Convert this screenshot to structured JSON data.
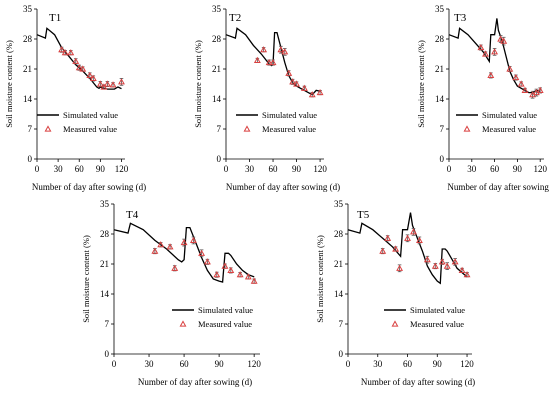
{
  "shared": {
    "ylabel": "Soil moisture content (%)",
    "xlabel": "Number of day after sowing (d)",
    "legend_simulated": "Simulated value",
    "legend_measured": "Measured value",
    "colors": {
      "line": "#000000",
      "marker": "#d94040",
      "errorbar": "#555555"
    }
  },
  "chart_data": [
    {
      "type": "line",
      "title": "T1",
      "xlabel": "Number of day after sowing (d)",
      "ylabel": "Soil moisture content (%)",
      "xlim": [
        0,
        125
      ],
      "ylim": [
        0,
        35
      ],
      "xticks": [
        0,
        30,
        60,
        90,
        120
      ],
      "yticks": [
        0,
        7,
        14,
        21,
        28,
        35
      ],
      "legend": "bottom-right",
      "series": [
        {
          "name": "Simulated value",
          "kind": "line",
          "x": [
            0,
            12,
            14,
            25,
            35,
            45,
            55,
            65,
            75,
            85,
            88,
            90,
            95,
            100,
            105,
            110,
            115,
            120
          ],
          "y": [
            29.0,
            28.2,
            30.5,
            29.0,
            26.0,
            24.0,
            22.0,
            20.5,
            18.8,
            16.8,
            16.5,
            16.8,
            16.5,
            16.3,
            16.3,
            16.3,
            16.8,
            16.4
          ]
        },
        {
          "name": "Measured value",
          "kind": "scatter",
          "x": [
            35,
            40,
            48,
            55,
            60,
            65,
            75,
            80,
            90,
            95,
            100,
            108,
            120
          ],
          "y": [
            25.5,
            24.8,
            24.8,
            22.8,
            21.3,
            21.0,
            19.5,
            18.8,
            17.5,
            16.8,
            17.5,
            17.3,
            18.0
          ],
          "err": [
            0.6,
            0.5,
            0.5,
            0.6,
            0.6,
            0.5,
            0.6,
            0.6,
            0.6,
            0.5,
            0.6,
            0.5,
            0.8
          ]
        }
      ]
    },
    {
      "type": "line",
      "title": "T2",
      "xlabel": "Number of day after sowing (d)",
      "ylabel": "Soil moisture content (%)",
      "xlim": [
        0,
        125
      ],
      "ylim": [
        0,
        35
      ],
      "xticks": [
        0,
        30,
        60,
        90,
        120
      ],
      "yticks": [
        0,
        7,
        14,
        21,
        28,
        35
      ],
      "legend": "bottom-right",
      "series": [
        {
          "name": "Simulated value",
          "kind": "line",
          "x": [
            0,
            12,
            14,
            25,
            35,
            45,
            55,
            58,
            60,
            62,
            65,
            70,
            75,
            80,
            85,
            90,
            95,
            100,
            105,
            110,
            115,
            120
          ],
          "y": [
            29.0,
            28.2,
            30.5,
            29.0,
            26.5,
            24.5,
            22.2,
            21.8,
            22.0,
            29.5,
            29.5,
            26.0,
            22.5,
            19.5,
            17.8,
            17.0,
            16.5,
            16.0,
            15.5,
            15.0,
            16.0,
            15.8
          ]
        },
        {
          "name": "Measured value",
          "kind": "scatter",
          "x": [
            40,
            48,
            55,
            60,
            70,
            75,
            80,
            85,
            90,
            100,
            110,
            120
          ],
          "y": [
            23.0,
            25.5,
            22.5,
            22.5,
            25.5,
            25.0,
            20.0,
            18.0,
            17.5,
            16.5,
            15.0,
            15.5
          ],
          "err": [
            0.5,
            0.5,
            0.6,
            0.6,
            0.8,
            0.8,
            0.6,
            0.6,
            0.5,
            0.5,
            0.5,
            0.5
          ]
        }
      ]
    },
    {
      "type": "line",
      "title": "T3",
      "xlabel": "Number of day after sowing (d)",
      "ylabel": "Soil moisture content (%)",
      "xlim": [
        0,
        125
      ],
      "ylim": [
        0,
        35
      ],
      "xticks": [
        0,
        30,
        60,
        90,
        120
      ],
      "yticks": [
        0,
        7,
        14,
        21,
        28,
        35
      ],
      "legend": "bottom-right",
      "series": [
        {
          "name": "Simulated value",
          "kind": "line",
          "x": [
            0,
            12,
            14,
            25,
            35,
            45,
            53,
            55,
            58,
            60,
            63,
            65,
            70,
            75,
            80,
            85,
            90,
            95,
            100,
            105,
            110,
            115,
            120
          ],
          "y": [
            29.0,
            28.2,
            30.5,
            29.0,
            27.0,
            25.0,
            22.8,
            29.0,
            29.0,
            29.0,
            32.8,
            30.0,
            27.5,
            24.0,
            20.5,
            18.5,
            17.0,
            16.5,
            16.0,
            15.5,
            15.5,
            16.0,
            15.8
          ]
        },
        {
          "name": "Measured value",
          "kind": "scatter",
          "x": [
            42,
            48,
            55,
            60,
            68,
            72,
            80,
            88,
            95,
            100,
            110,
            115,
            120
          ],
          "y": [
            26.0,
            24.5,
            19.5,
            25.0,
            28.0,
            27.5,
            21.0,
            19.0,
            17.5,
            16.0,
            15.0,
            15.5,
            16.0
          ],
          "err": [
            0.6,
            0.5,
            0.6,
            0.8,
            0.8,
            0.9,
            0.6,
            0.6,
            0.5,
            0.5,
            0.8,
            0.8,
            0.6
          ]
        }
      ]
    },
    {
      "type": "line",
      "title": "T4",
      "xlabel": "Number of day after sowing (d)",
      "ylabel": "Soil moisture content (%)",
      "xlim": [
        0,
        125
      ],
      "ylim": [
        0,
        35
      ],
      "xticks": [
        0,
        30,
        60,
        90,
        120
      ],
      "yticks": [
        0,
        7,
        14,
        21,
        28,
        35
      ],
      "legend": "bottom-right",
      "series": [
        {
          "name": "Simulated value",
          "kind": "line",
          "x": [
            0,
            12,
            14,
            25,
            35,
            45,
            55,
            58,
            60,
            62,
            65,
            70,
            75,
            80,
            85,
            90,
            93,
            95,
            98,
            100,
            105,
            110,
            115,
            120
          ],
          "y": [
            29.0,
            28.2,
            30.5,
            29.0,
            26.5,
            24.5,
            22.0,
            21.5,
            22.0,
            29.5,
            29.5,
            26.0,
            22.5,
            19.5,
            17.5,
            17.0,
            16.8,
            23.5,
            23.5,
            23.0,
            21.0,
            19.5,
            18.5,
            18.0
          ]
        },
        {
          "name": "Measured value",
          "kind": "scatter",
          "x": [
            35,
            40,
            48,
            52,
            60,
            68,
            75,
            80,
            88,
            95,
            100,
            108,
            115,
            120
          ],
          "y": [
            24.0,
            25.5,
            25.0,
            20.0,
            26.0,
            26.5,
            23.5,
            21.5,
            18.5,
            20.5,
            19.5,
            18.5,
            18.0,
            17.0
          ],
          "err": [
            0.6,
            0.5,
            0.5,
            0.6,
            0.8,
            0.8,
            0.8,
            0.6,
            0.6,
            0.5,
            0.6,
            0.5,
            0.5,
            0.5
          ]
        }
      ]
    },
    {
      "type": "line",
      "title": "T5",
      "xlabel": "Number of day after sowing (d)",
      "ylabel": "Soil moisture content (%)",
      "xlim": [
        0,
        125
      ],
      "ylim": [
        0,
        35
      ],
      "xticks": [
        0,
        30,
        60,
        90,
        120
      ],
      "yticks": [
        0,
        7,
        14,
        21,
        28,
        35
      ],
      "legend": "bottom-right",
      "series": [
        {
          "name": "Simulated value",
          "kind": "line",
          "x": [
            0,
            12,
            14,
            25,
            35,
            45,
            53,
            55,
            58,
            60,
            63,
            65,
            70,
            75,
            80,
            85,
            90,
            93,
            95,
            98,
            100,
            105,
            110,
            115,
            120
          ],
          "y": [
            29.0,
            28.2,
            30.5,
            29.0,
            27.0,
            25.0,
            22.8,
            29.0,
            29.0,
            29.0,
            33.0,
            30.0,
            27.0,
            24.0,
            20.5,
            18.5,
            17.0,
            16.5,
            24.5,
            24.5,
            24.0,
            22.0,
            20.0,
            19.0,
            18.0
          ]
        },
        {
          "name": "Measured value",
          "kind": "scatter",
          "x": [
            35,
            40,
            48,
            52,
            60,
            66,
            72,
            80,
            88,
            95,
            100,
            108,
            115,
            120
          ],
          "y": [
            24.0,
            27.0,
            24.5,
            20.0,
            27.0,
            28.5,
            26.5,
            22.0,
            20.5,
            21.5,
            20.5,
            21.5,
            19.5,
            18.5
          ],
          "err": [
            0.6,
            0.6,
            0.5,
            0.8,
            0.8,
            0.8,
            0.8,
            0.8,
            0.6,
            0.6,
            0.8,
            0.8,
            0.5,
            0.5
          ]
        }
      ]
    }
  ]
}
